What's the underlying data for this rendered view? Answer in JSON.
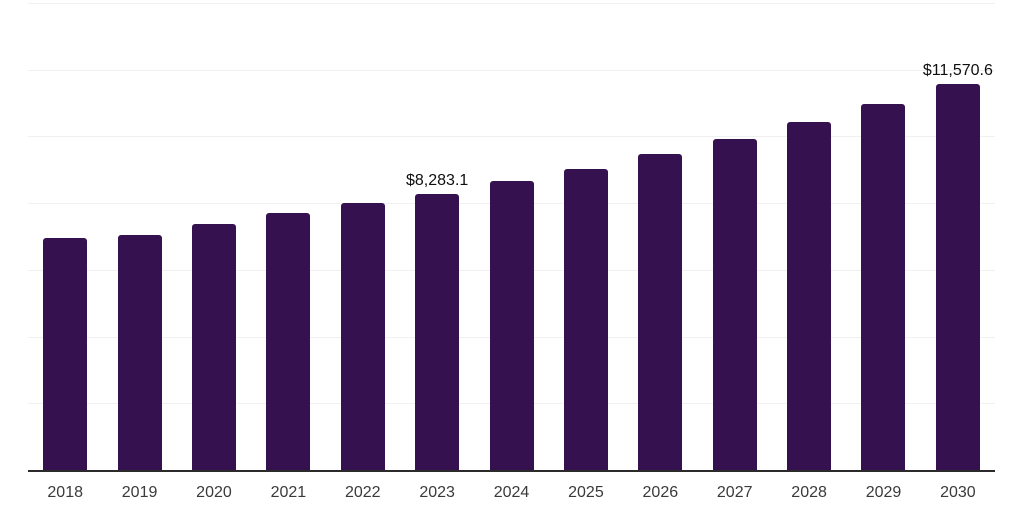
{
  "chart_data": {
    "type": "bar",
    "title": "",
    "xlabel": "",
    "ylabel": "",
    "categories": [
      "2018",
      "2019",
      "2020",
      "2021",
      "2022",
      "2023",
      "2024",
      "2025",
      "2026",
      "2027",
      "2028",
      "2029",
      "2030"
    ],
    "values": [
      6950,
      7060,
      7370,
      7700,
      8010,
      8283.1,
      8650,
      9030,
      9470,
      9920,
      10420,
      10970,
      11570.6
    ],
    "data_labels": [
      "",
      "",
      "",
      "",
      "",
      "$8,283.1",
      "",
      "",
      "",
      "",
      "",
      "",
      "$11,570.6"
    ],
    "ylim": [
      0,
      14000
    ],
    "gridline_step": 2000,
    "grid": "on",
    "legend": "none",
    "colors": {
      "bar": "#36114F",
      "gridline": "#f0f0f0",
      "axis_line": "#2b2b2b",
      "tick_label": "#3a3a3a",
      "value_label": "#0f0f0f",
      "background": "#ffffff"
    }
  }
}
